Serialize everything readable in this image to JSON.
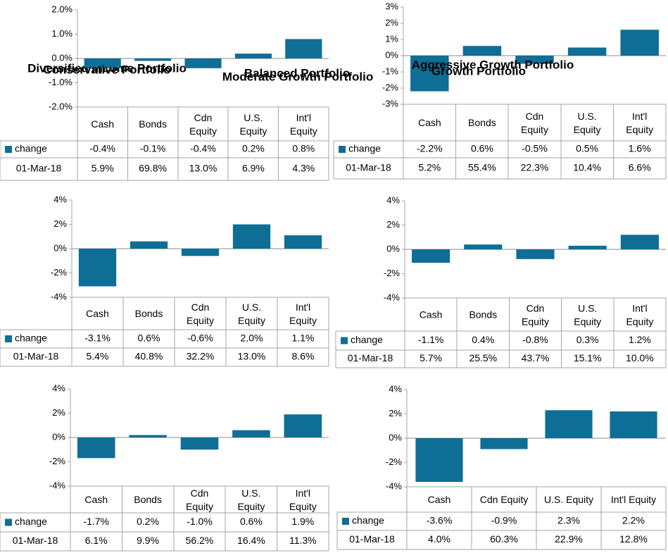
{
  "series_color": "#0F6E96",
  "series_name": "change",
  "date_label": "01-Mar-18",
  "chart_data": [
    {
      "type": "bar",
      "title": "Diversified  Income Portfolio",
      "categories": [
        [
          "Cash"
        ],
        [
          "Bonds"
        ],
        [
          "Cdn",
          "Equity"
        ],
        [
          "U.S.",
          "Equity"
        ],
        [
          "Int'l",
          "Equity"
        ]
      ],
      "ylim": [
        -2.0,
        2.0
      ],
      "yticks": [
        "2.0%",
        "1.0%",
        "0.0%",
        "-1.0%",
        "-2.0%"
      ],
      "series": [
        {
          "name": "change",
          "values": [
            -0.4,
            -0.1,
            -0.4,
            0.2,
            0.8
          ],
          "labels": [
            "-0.4%",
            "-0.1%",
            "-0.4%",
            "0.2%",
            "0.8%"
          ]
        }
      ],
      "weights": [
        "5.9%",
        "69.8%",
        "13.0%",
        "6.9%",
        "4.3%"
      ]
    },
    {
      "type": "bar",
      "title": "Conservative Portfolio",
      "categories": [
        [
          "Cash"
        ],
        [
          "Bonds"
        ],
        [
          "Cdn",
          "Equity"
        ],
        [
          "U.S.",
          "Equity"
        ],
        [
          "Int'l",
          "Equity"
        ]
      ],
      "ylim": [
        -3,
        3
      ],
      "yticks": [
        "3%",
        "2%",
        "1%",
        "0%",
        "-1%",
        "-2%",
        "-3%"
      ],
      "series": [
        {
          "name": "change",
          "values": [
            -2.2,
            0.6,
            -0.5,
            0.5,
            1.6
          ],
          "labels": [
            "-2.2%",
            "0.6%",
            "-0.5%",
            "0.5%",
            "1.6%"
          ]
        }
      ],
      "weights": [
        "5.2%",
        "55.4%",
        "22.3%",
        "10.4%",
        "6.6%"
      ]
    },
    {
      "type": "bar",
      "title": "Balanced Portfolio",
      "categories": [
        [
          "Cash"
        ],
        [
          "Bonds"
        ],
        [
          "Cdn",
          "Equity"
        ],
        [
          "U.S.",
          "Equity"
        ],
        [
          "Int'l",
          "Equity"
        ]
      ],
      "ylim": [
        -4,
        4
      ],
      "yticks": [
        "4%",
        "2%",
        "0%",
        "-2%",
        "-4%"
      ],
      "series": [
        {
          "name": "change",
          "values": [
            -3.1,
            0.6,
            -0.6,
            2.0,
            1.1
          ],
          "labels": [
            "-3.1%",
            "0.6%",
            "-0.6%",
            "2.0%",
            "1.1%"
          ]
        }
      ],
      "weights": [
        "5.4%",
        "40.8%",
        "32.2%",
        "13.0%",
        "8.6%"
      ]
    },
    {
      "type": "bar",
      "title": "Moderate Growth Portfolio",
      "categories": [
        [
          "Cash"
        ],
        [
          "Bonds"
        ],
        [
          "Cdn",
          "Equity"
        ],
        [
          "U.S.",
          "Equity"
        ],
        [
          "Int'l",
          "Equity"
        ]
      ],
      "ylim": [
        -4,
        4
      ],
      "yticks": [
        "4%",
        "2%",
        "0%",
        "-2%",
        "-4%"
      ],
      "series": [
        {
          "name": "change",
          "values": [
            -1.1,
            0.4,
            -0.8,
            0.3,
            1.2
          ],
          "labels": [
            "-1.1%",
            "0.4%",
            "-0.8%",
            "0.3%",
            "1.2%"
          ]
        }
      ],
      "weights": [
        "5.7%",
        "25.5%",
        "43.7%",
        "15.1%",
        "10.0%"
      ]
    },
    {
      "type": "bar",
      "title": "Growth Portfolio",
      "categories": [
        [
          "Cash"
        ],
        [
          "Bonds"
        ],
        [
          "Cdn",
          "Equity"
        ],
        [
          "U.S.",
          "Equity"
        ],
        [
          "Int'l",
          "Equity"
        ]
      ],
      "ylim": [
        -4,
        4
      ],
      "yticks": [
        "4%",
        "2%",
        "0%",
        "-2%",
        "-4%"
      ],
      "series": [
        {
          "name": "change",
          "values": [
            -1.7,
            0.2,
            -1.0,
            0.6,
            1.9
          ],
          "labels": [
            "-1.7%",
            "0.2%",
            "-1.0%",
            "0.6%",
            "1.9%"
          ]
        }
      ],
      "weights": [
        "6.1%",
        "9.9%",
        "56.2%",
        "16.4%",
        "11.3%"
      ]
    },
    {
      "type": "bar",
      "title": "Aggressive Growth Portfolio",
      "categories": [
        [
          "Cash"
        ],
        [
          "Cdn Equity"
        ],
        [
          "U.S. Equity"
        ],
        [
          "Int'l Equity"
        ]
      ],
      "ylim": [
        -4,
        4
      ],
      "yticks": [
        "4%",
        "2%",
        "0%",
        "-2%",
        "-4%"
      ],
      "series": [
        {
          "name": "change",
          "values": [
            -3.6,
            -0.9,
            2.3,
            2.2
          ],
          "labels": [
            "-3.6%",
            "-0.9%",
            "2.3%",
            "2.2%"
          ]
        }
      ],
      "weights": [
        "4.0%",
        "60.3%",
        "22.9%",
        "12.8%"
      ]
    }
  ]
}
